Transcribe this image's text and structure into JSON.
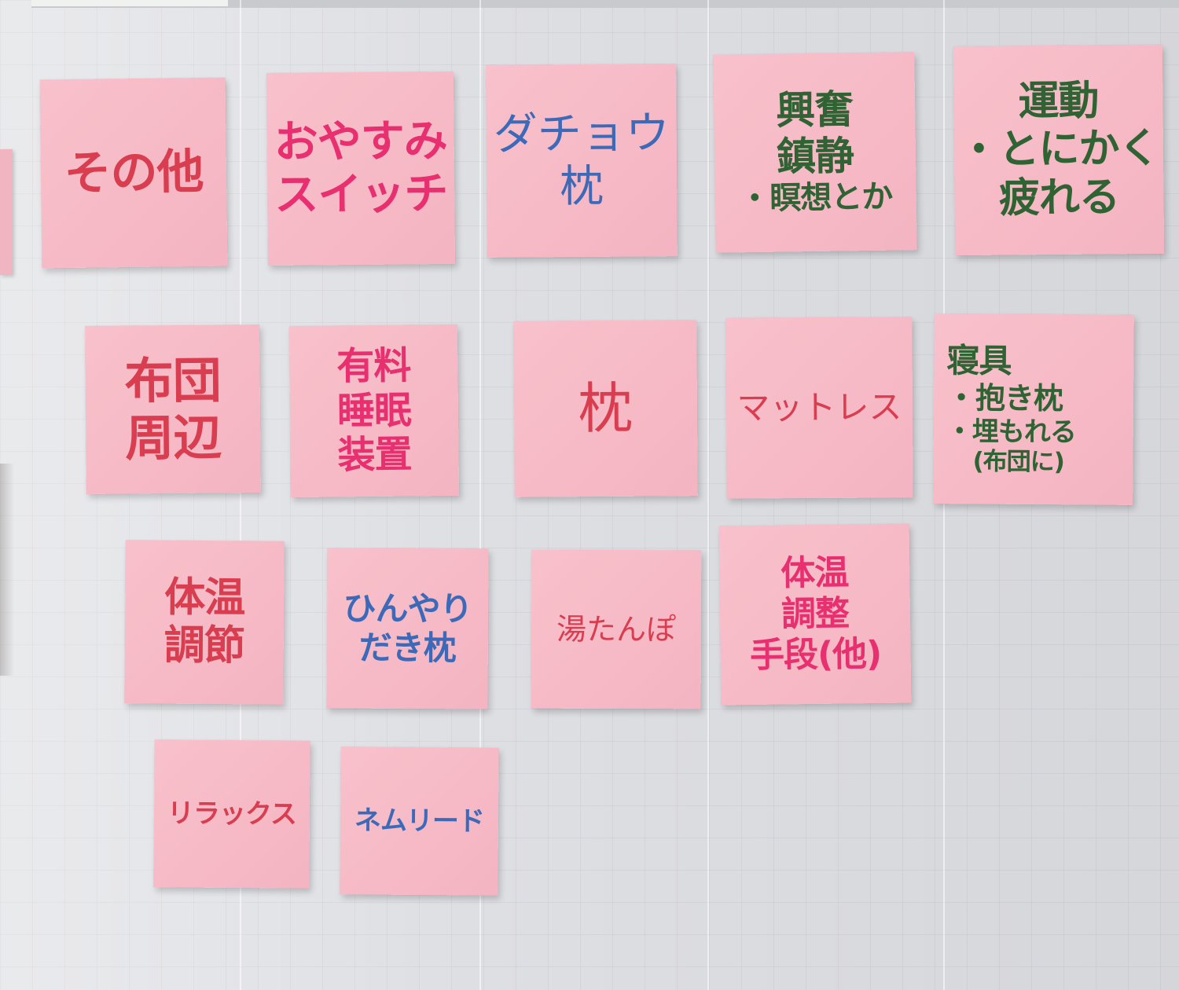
{
  "palette": {
    "note_pink": "#f6bac6",
    "board_gray": "#dedfe3",
    "ink_red": "#d93d50",
    "ink_pink": "#e82f70",
    "ink_blue": "#3c69b8",
    "ink_green": "#2f6333"
  },
  "notes": [
    {
      "id": "sonota",
      "ink": "red",
      "lines": [
        "その他"
      ]
    },
    {
      "id": "oyasumi-switch",
      "ink": "pink",
      "lines": [
        "おやすみ",
        "スイッチ"
      ]
    },
    {
      "id": "dachou-makura",
      "ink": "blue",
      "lines": [
        "ダチョウ",
        "枕"
      ]
    },
    {
      "id": "kofun-chinsei",
      "ink": "green",
      "lines": [
        "興奮",
        "鎮静",
        "・瞑想とか"
      ]
    },
    {
      "id": "undou",
      "ink": "green",
      "lines": [
        "運動",
        "・とにかく",
        "疲れる"
      ]
    },
    {
      "id": "futon-shuuhen",
      "ink": "red",
      "lines": [
        "布団",
        "周辺"
      ]
    },
    {
      "id": "yuuryou-suimin-souchi",
      "ink": "pink",
      "lines": [
        "有料",
        "睡眠",
        "装置"
      ]
    },
    {
      "id": "makura",
      "ink": "red",
      "lines": [
        "枕"
      ]
    },
    {
      "id": "mattress",
      "ink": "red",
      "lines": [
        "マットレス"
      ]
    },
    {
      "id": "shingu",
      "ink": "green",
      "lines": [
        "寝具",
        "・抱き枕",
        "・埋もれる",
        "(布団に)"
      ]
    },
    {
      "id": "taion-chousetsu",
      "ink": "red",
      "lines": [
        "体温",
        "調節"
      ]
    },
    {
      "id": "hinyari-dakimakura",
      "ink": "blue",
      "lines": [
        "ひんやり",
        "だき枕"
      ]
    },
    {
      "id": "yutanpo",
      "ink": "red",
      "lines": [
        "湯たんぽ"
      ]
    },
    {
      "id": "taion-chousei-shudan",
      "ink": "pink",
      "lines": [
        "体温",
        "調整",
        "手段(他)"
      ]
    },
    {
      "id": "relax",
      "ink": "red",
      "lines": [
        "リラックス"
      ]
    },
    {
      "id": "nemuri-do",
      "ink": "blue",
      "lines": [
        "ネムリード"
      ]
    }
  ]
}
